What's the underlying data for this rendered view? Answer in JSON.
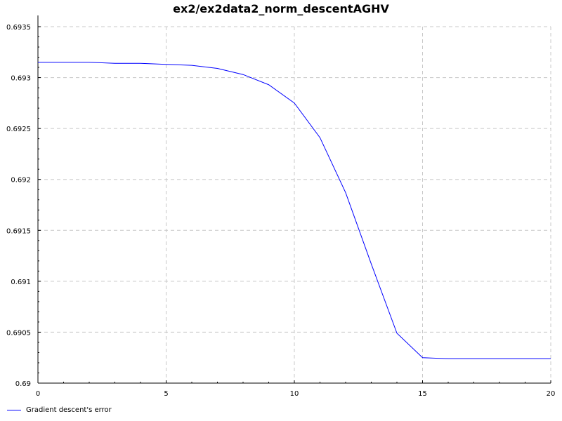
{
  "chart_data": {
    "type": "line",
    "title": "ex2/ex2data2_norm_descentAGHV",
    "xlabel": "",
    "ylabel": "",
    "xlim": [
      0,
      20
    ],
    "ylim": [
      0.69,
      0.6935
    ],
    "x_ticks": [
      0,
      5,
      10,
      15,
      20
    ],
    "x_tick_labels": [
      "0",
      "5",
      "10",
      "15",
      "20"
    ],
    "y_ticks": [
      0.69,
      0.6905,
      0.691,
      0.6915,
      0.692,
      0.6925,
      0.693,
      0.6935
    ],
    "y_tick_labels": [
      "0.69",
      "0.6905",
      "0.691",
      "0.6915",
      "0.692",
      "0.6925",
      "0.693",
      "0.6935"
    ],
    "grid": true,
    "legend_position": "bottom-left",
    "series": [
      {
        "name": "Gradient descent's error",
        "color": "#0000ff",
        "x": [
          0,
          1,
          2,
          3,
          4,
          5,
          6,
          7,
          8,
          9,
          10,
          11,
          12,
          13,
          14,
          15,
          16,
          17,
          18,
          19,
          20
        ],
        "y": [
          0.69315,
          0.69315,
          0.69315,
          0.69314,
          0.69314,
          0.69313,
          0.69312,
          0.69309,
          0.69303,
          0.69293,
          0.69275,
          0.69241,
          0.69187,
          0.69117,
          0.69049,
          0.69025,
          0.69024,
          0.69024,
          0.69024,
          0.69024,
          0.69024
        ]
      }
    ]
  }
}
